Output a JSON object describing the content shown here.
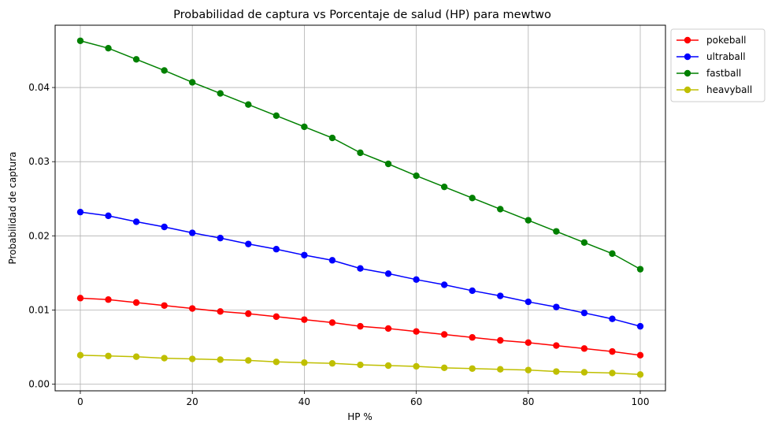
{
  "chart_data": {
    "type": "line",
    "title": "Probabilidad de captura vs Porcentaje de salud (HP) para mewtwo",
    "xlabel": "HP %",
    "ylabel": "Probabilidad de captura",
    "xlim": [
      -4.5,
      104.5
    ],
    "ylim": [
      -0.0009,
      0.0484
    ],
    "xticks": [
      0,
      20,
      40,
      60,
      80,
      100
    ],
    "xtick_labels": [
      "0",
      "20",
      "40",
      "60",
      "80",
      "100"
    ],
    "yticks": [
      0.0,
      0.01,
      0.02,
      0.03,
      0.04
    ],
    "ytick_labels": [
      "0.00",
      "0.01",
      "0.02",
      "0.03",
      "0.04"
    ],
    "grid": true,
    "legend_position": "outside-top-right",
    "x": [
      0,
      5,
      10,
      15,
      20,
      25,
      30,
      35,
      40,
      45,
      50,
      55,
      60,
      65,
      70,
      75,
      80,
      85,
      90,
      95,
      100
    ],
    "series": [
      {
        "name": "pokeball",
        "color": "#ff0000",
        "values": [
          0.0116,
          0.0114,
          0.011,
          0.0106,
          0.0102,
          0.0098,
          0.0095,
          0.0091,
          0.0087,
          0.0083,
          0.0078,
          0.0075,
          0.0071,
          0.0067,
          0.0063,
          0.0059,
          0.0056,
          0.0052,
          0.0048,
          0.0044,
          0.0039
        ]
      },
      {
        "name": "ultraball",
        "color": "#0000ff",
        "values": [
          0.0232,
          0.0227,
          0.0219,
          0.0212,
          0.0204,
          0.0197,
          0.0189,
          0.0182,
          0.0174,
          0.0167,
          0.0156,
          0.0149,
          0.0141,
          0.0134,
          0.0126,
          0.0119,
          0.0111,
          0.0104,
          0.0096,
          0.0088,
          0.0078
        ]
      },
      {
        "name": "fastball",
        "color": "#008000",
        "values": [
          0.0463,
          0.0453,
          0.0438,
          0.0423,
          0.0407,
          0.0392,
          0.0377,
          0.0362,
          0.0347,
          0.0332,
          0.0312,
          0.0297,
          0.0281,
          0.0266,
          0.0251,
          0.0236,
          0.0221,
          0.0206,
          0.0191,
          0.0176,
          0.0155
        ]
      },
      {
        "name": "heavyball",
        "color": "#bfbf00",
        "values": [
          0.0039,
          0.0038,
          0.0037,
          0.0035,
          0.0034,
          0.0033,
          0.0032,
          0.003,
          0.0029,
          0.0028,
          0.0026,
          0.0025,
          0.0024,
          0.0022,
          0.0021,
          0.002,
          0.0019,
          0.0017,
          0.0016,
          0.0015,
          0.0013
        ]
      }
    ]
  }
}
